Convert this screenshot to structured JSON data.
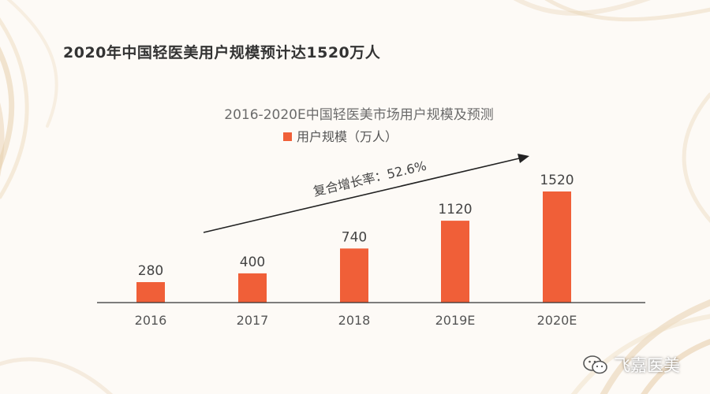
{
  "page": {
    "heading": "2020年中国轻医美用户规模预计达1520万人"
  },
  "chart_data": {
    "type": "bar",
    "title": "2016-2020E中国轻医美市场用户规模及预测",
    "categories": [
      "2016",
      "2017",
      "2018",
      "2019E",
      "2020E"
    ],
    "series": [
      {
        "name": "用户规模（万人）",
        "values": [
          280,
          400,
          740,
          1120,
          1520
        ]
      }
    ],
    "ylim": [
      0,
      1600
    ],
    "grid": false,
    "legend": "top-left",
    "annotation": "复合增长率：52.6%",
    "bar_color": "#f05f38"
  },
  "watermark": {
    "icon": "wechat-icon",
    "label": "飞嘉医美"
  }
}
